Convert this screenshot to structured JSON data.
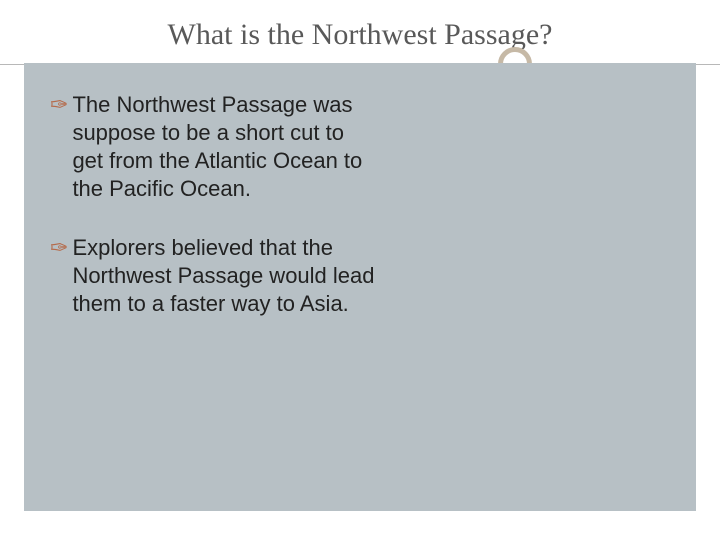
{
  "slide": {
    "title": "What is the Northwest Passage?",
    "bullets": [
      {
        "text": "The Northwest Passage was suppose to be a short cut to get from the Atlantic Ocean to the Pacific Ocean."
      },
      {
        "text": "Explorers believed that the Northwest Passage would lead them to a faster way to Asia."
      }
    ],
    "colors": {
      "title_color": "#595959",
      "bullet_icon_color": "#b56a4a",
      "body_text_color": "#222222",
      "content_bg": "#b7c0c5",
      "circle_border": "#c6b9a6",
      "divider": "#b8b8b8"
    },
    "typography": {
      "title_fontsize": 30,
      "body_fontsize": 22,
      "title_font": "Georgia",
      "body_font": "Arial"
    },
    "layout": {
      "slide_width": 720,
      "slide_height": 540,
      "content_width": 672,
      "bullet_max_width": 330
    }
  }
}
